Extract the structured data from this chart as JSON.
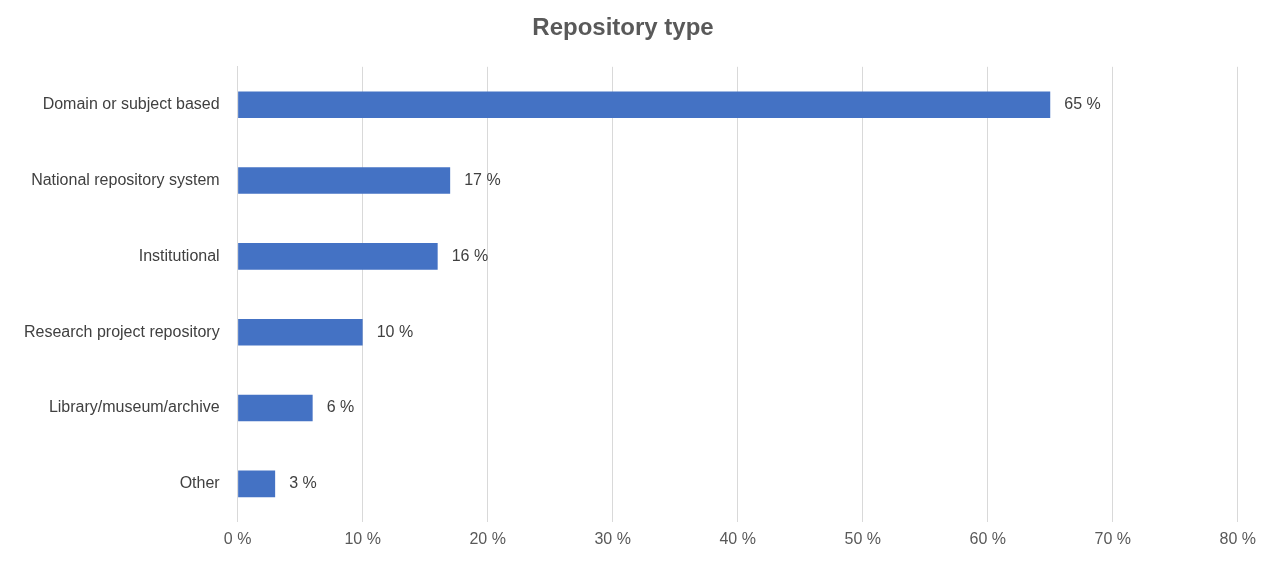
{
  "chart_data": {
    "type": "bar",
    "orientation": "horizontal",
    "title": "Repository type",
    "categories": [
      "Domain or subject based",
      "National repository system",
      "Institutional",
      "Research project repository",
      "Library/museum/archive",
      "Other"
    ],
    "values": [
      65,
      17,
      16,
      10,
      6,
      3
    ],
    "value_labels": [
      "65 %",
      "17 %",
      "16 %",
      "10 %",
      "6 %",
      "3 %"
    ],
    "color": "#4472c4",
    "xlim": [
      0,
      80
    ],
    "xticks": [
      {
        "value": 0,
        "label": "0 %"
      },
      {
        "value": 10,
        "label": "10 %"
      },
      {
        "value": 20,
        "label": "20 %"
      },
      {
        "value": 30,
        "label": "30 %"
      },
      {
        "value": 40,
        "label": "40 %"
      },
      {
        "value": 50,
        "label": "50 %"
      },
      {
        "value": 60,
        "label": "60 %"
      },
      {
        "value": 70,
        "label": "70 %"
      },
      {
        "value": 80,
        "label": "80 %"
      }
    ],
    "grid": "x",
    "legend": false
  }
}
